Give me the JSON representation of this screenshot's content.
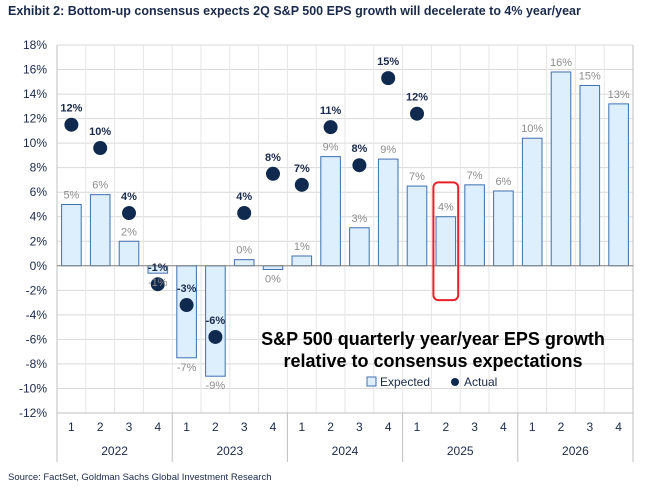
{
  "exhibit_title": "Exhibit 2: Bottom-up consensus expects 2Q S&P 500 EPS growth will decelerate to 4% year/year",
  "source": "Source: FactSet, Goldman Sachs Global Investment Research",
  "chart_data": {
    "type": "bar",
    "title_line1": "S&P 500 quarterly year/year EPS growth",
    "title_line2": "relative to consensus expectations",
    "quarters": [
      "1",
      "2",
      "3",
      "4",
      "1",
      "2",
      "3",
      "4",
      "1",
      "2",
      "3",
      "4",
      "1",
      "2",
      "3",
      "4",
      "1",
      "2",
      "3",
      "4"
    ],
    "years": [
      "2022",
      "2023",
      "2024",
      "2025",
      "2026"
    ],
    "ylim": [
      -12,
      18
    ],
    "yticks": [
      -12,
      -10,
      -8,
      -6,
      -4,
      -2,
      0,
      2,
      4,
      6,
      8,
      10,
      12,
      14,
      16,
      18
    ],
    "ytick_labels": [
      "-12%",
      "-10%",
      "-8%",
      "-6%",
      "-4%",
      "-2%",
      "0%",
      "2%",
      "4%",
      "6%",
      "8%",
      "10%",
      "12%",
      "14%",
      "16%",
      "18%"
    ],
    "grid": true,
    "legend": {
      "placement": "bottom-center",
      "expected_label": "Expected",
      "actual_label": "Actual"
    },
    "expected": {
      "name": "Expected",
      "values": [
        5,
        5.8,
        2,
        -0.6,
        -7.5,
        -9,
        0.5,
        -0.3,
        0.8,
        8.9,
        3.1,
        8.7,
        6.5,
        4,
        6.6,
        6.1,
        10.4,
        15.8,
        14.7,
        13.2
      ],
      "labels": [
        "5%",
        "6%",
        "2%",
        "-1%",
        "-7%",
        "-9%",
        "0%",
        "0%",
        "1%",
        "9%",
        "3%",
        "9%",
        "7%",
        "4%",
        "7%",
        "6%",
        "10%",
        "16%",
        "15%",
        "13%"
      ],
      "label_color": "#8c8c8c"
    },
    "actual": {
      "name": "Actual",
      "values": [
        11.5,
        9.6,
        4.3,
        -1.5,
        -3.2,
        -5.8,
        4.3,
        7.5,
        6.6,
        11.3,
        8.2,
        15.3,
        12.4
      ],
      "labels": [
        "12%",
        "10%",
        "4%",
        "-1%",
        "-3%",
        "-6%",
        "4%",
        "8%",
        "7%",
        "11%",
        "8%",
        "15%",
        "12%"
      ],
      "label_color": "#1a2a4a"
    },
    "highlight": {
      "quarter_index": 13,
      "color": "#e8202a"
    },
    "colors": {
      "expected_fill": "#ddeefc",
      "expected_stroke": "#3f6fb0",
      "actual_marker": "#0f2a4e",
      "text": "#1a2a4a"
    }
  }
}
